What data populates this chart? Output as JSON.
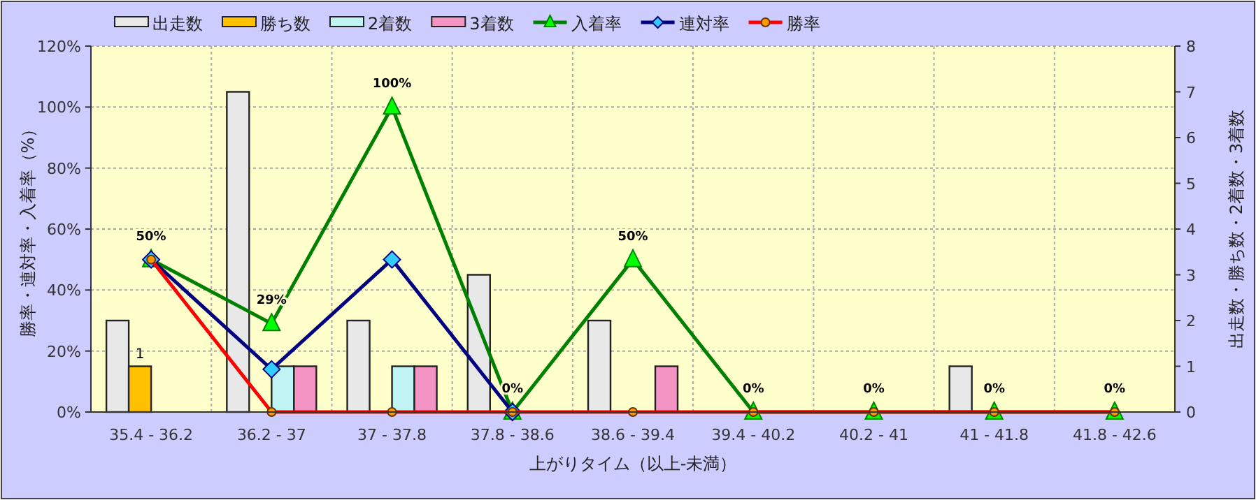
{
  "chart_data": {
    "type": "bar",
    "categories": [
      "35.4 - 36.2",
      "36.2 - 37",
      "37 - 37.8",
      "37.8 - 38.6",
      "38.6 - 39.4",
      "39.4 - 40.2",
      "40.2 - 41",
      "41 - 41.8",
      "41.8 - 42.6"
    ],
    "series": [
      {
        "name": "出走数",
        "axis": "y2",
        "color": "#e8e8e8",
        "values": [
          2,
          7,
          2,
          3,
          2,
          0,
          0,
          1,
          0
        ]
      },
      {
        "name": "勝ち数",
        "axis": "y2",
        "color": "#ffc000",
        "values": [
          1,
          0,
          0,
          0,
          0,
          0,
          0,
          0,
          0
        ],
        "value_labels": [
          "1",
          null,
          null,
          null,
          null,
          null,
          null,
          null,
          null
        ]
      },
      {
        "name": "2着数",
        "axis": "y2",
        "color": "#c0f4f4",
        "values": [
          0,
          1,
          1,
          0,
          0,
          0,
          0,
          0,
          0
        ]
      },
      {
        "name": "3着数",
        "axis": "y2",
        "color": "#f494c4",
        "values": [
          0,
          1,
          1,
          0,
          1,
          0,
          0,
          0,
          0
        ]
      },
      {
        "name": "入着率",
        "type": "line",
        "marker": "triangle",
        "color": "#008000",
        "values": [
          50,
          29,
          100,
          0,
          50,
          0,
          0,
          0,
          0
        ],
        "value_labels": [
          "50%",
          "29%",
          "100%",
          "0%",
          "50%",
          "0%",
          "0%",
          "0%",
          "0%"
        ]
      },
      {
        "name": "連対率",
        "type": "line",
        "marker": "diamond",
        "color": "#000080",
        "values": [
          50,
          14,
          50,
          0,
          null,
          null,
          null,
          null,
          null
        ]
      },
      {
        "name": "勝率",
        "type": "line",
        "marker": "circle",
        "color": "#ff0000",
        "values": [
          50,
          0,
          0,
          0,
          0,
          0,
          0,
          0,
          0
        ]
      }
    ],
    "xlabel": "上がりタイム（以上-未満）",
    "ylabel": "勝率・連対率・入着率（%）",
    "y2label": "出走数・勝ち数・2着数・3着数",
    "ylim": [
      0,
      120
    ],
    "yticks": [
      {
        "value": 0,
        "label": "0%"
      },
      {
        "value": 20,
        "label": "20%"
      },
      {
        "value": 40,
        "label": "40%"
      },
      {
        "value": 60,
        "label": "60%"
      },
      {
        "value": 80,
        "label": "80%"
      },
      {
        "value": 100,
        "label": "100%"
      },
      {
        "value": 120,
        "label": "120%"
      }
    ],
    "y2lim": [
      0,
      8
    ],
    "y2ticks": [
      0,
      1,
      2,
      3,
      4,
      5,
      6,
      7,
      8
    ],
    "grid": true,
    "legend": "top"
  }
}
